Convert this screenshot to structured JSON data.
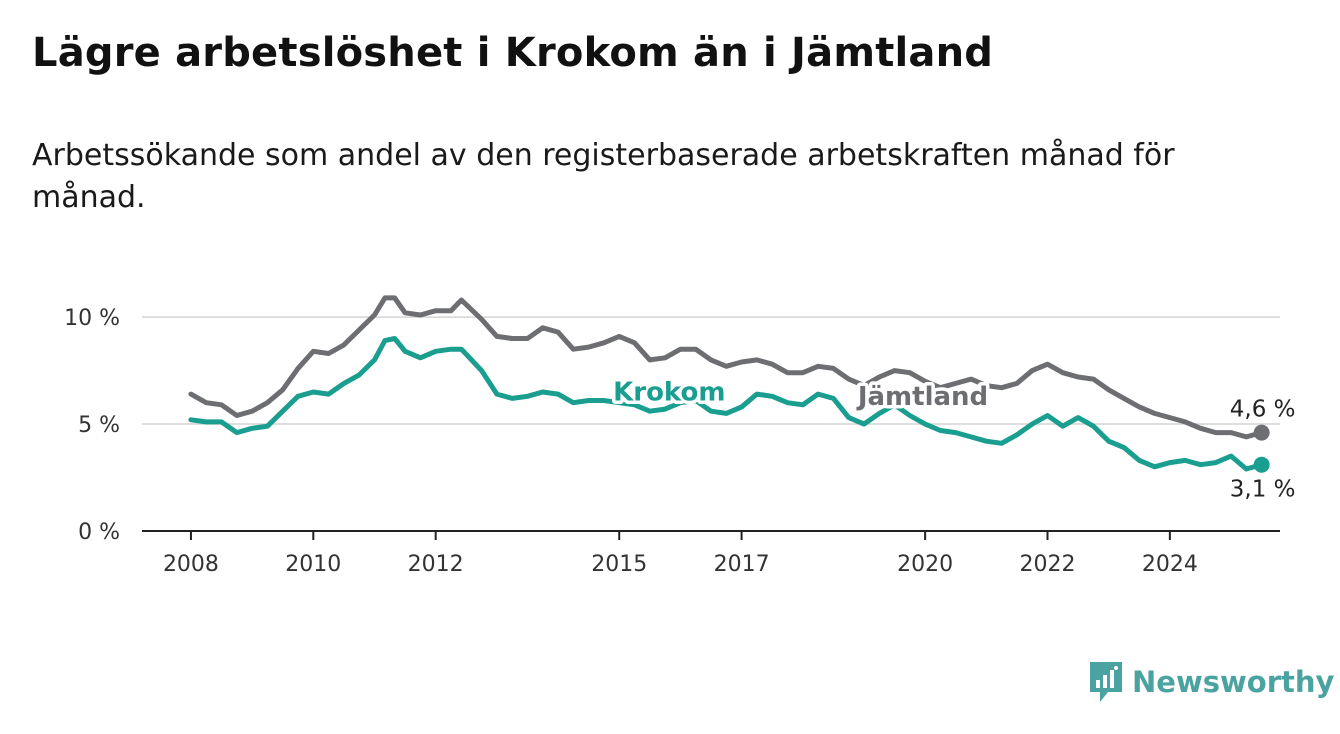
{
  "title": "Lägre arbetslöshet i Krokom än i Jämtland",
  "subtitle": "Arbetssökande som andel av den registerbaserade arbetskraften månad för månad.",
  "brand": {
    "name": "Newsworthy",
    "icon": "newsworthy-logo-icon",
    "color": "#4aa3a0"
  },
  "chart_data": {
    "type": "line",
    "x_unit": "year",
    "xlim": [
      2007.2,
      2025.8
    ],
    "ylim": [
      0,
      10.8
    ],
    "grid": true,
    "y_ticks": [
      {
        "value": 0,
        "label": "0 %"
      },
      {
        "value": 5,
        "label": "5 %"
      },
      {
        "value": 10,
        "label": "10 %"
      }
    ],
    "x_ticks": [
      {
        "value": 2008,
        "label": "2008"
      },
      {
        "value": 2010,
        "label": "2010"
      },
      {
        "value": 2012,
        "label": "2012"
      },
      {
        "value": 2015,
        "label": "2015"
      },
      {
        "value": 2017,
        "label": "2017"
      },
      {
        "value": 2020,
        "label": "2020"
      },
      {
        "value": 2022,
        "label": "2022"
      },
      {
        "value": 2024,
        "label": "2024"
      }
    ],
    "series": [
      {
        "name": "Jämtland",
        "color": "#6d6e72",
        "end_label": "4,6 %",
        "label_at": [
          2018.9,
          5.9
        ],
        "points": [
          [
            2008.0,
            6.4
          ],
          [
            2008.25,
            6.0
          ],
          [
            2008.5,
            5.9
          ],
          [
            2008.75,
            5.4
          ],
          [
            2009.0,
            5.6
          ],
          [
            2009.25,
            6.0
          ],
          [
            2009.5,
            6.6
          ],
          [
            2009.75,
            7.6
          ],
          [
            2010.0,
            8.4
          ],
          [
            2010.25,
            8.3
          ],
          [
            2010.5,
            8.7
          ],
          [
            2010.75,
            9.4
          ],
          [
            2011.0,
            10.1
          ],
          [
            2011.17,
            10.9
          ],
          [
            2011.33,
            10.9
          ],
          [
            2011.5,
            10.2
          ],
          [
            2011.75,
            10.1
          ],
          [
            2012.0,
            10.3
          ],
          [
            2012.25,
            10.3
          ],
          [
            2012.42,
            10.8
          ],
          [
            2012.75,
            9.9
          ],
          [
            2013.0,
            9.1
          ],
          [
            2013.25,
            9.0
          ],
          [
            2013.5,
            9.0
          ],
          [
            2013.75,
            9.5
          ],
          [
            2014.0,
            9.3
          ],
          [
            2014.25,
            8.5
          ],
          [
            2014.5,
            8.6
          ],
          [
            2014.75,
            8.8
          ],
          [
            2015.0,
            9.1
          ],
          [
            2015.25,
            8.8
          ],
          [
            2015.5,
            8.0
          ],
          [
            2015.75,
            8.1
          ],
          [
            2016.0,
            8.5
          ],
          [
            2016.25,
            8.5
          ],
          [
            2016.5,
            8.0
          ],
          [
            2016.75,
            7.7
          ],
          [
            2017.0,
            7.9
          ],
          [
            2017.25,
            8.0
          ],
          [
            2017.5,
            7.8
          ],
          [
            2017.75,
            7.4
          ],
          [
            2018.0,
            7.4
          ],
          [
            2018.25,
            7.7
          ],
          [
            2018.5,
            7.6
          ],
          [
            2018.75,
            7.1
          ],
          [
            2019.0,
            6.8
          ],
          [
            2019.25,
            7.2
          ],
          [
            2019.5,
            7.5
          ],
          [
            2019.75,
            7.4
          ],
          [
            2020.0,
            7.0
          ],
          [
            2020.25,
            6.7
          ],
          [
            2020.5,
            6.9
          ],
          [
            2020.75,
            7.1
          ],
          [
            2021.0,
            6.8
          ],
          [
            2021.25,
            6.7
          ],
          [
            2021.5,
            6.9
          ],
          [
            2021.75,
            7.5
          ],
          [
            2022.0,
            7.8
          ],
          [
            2022.25,
            7.4
          ],
          [
            2022.5,
            7.2
          ],
          [
            2022.75,
            7.1
          ],
          [
            2023.0,
            6.6
          ],
          [
            2023.25,
            6.2
          ],
          [
            2023.5,
            5.8
          ],
          [
            2023.75,
            5.5
          ],
          [
            2024.0,
            5.3
          ],
          [
            2024.25,
            5.1
          ],
          [
            2024.5,
            4.8
          ],
          [
            2024.75,
            4.6
          ],
          [
            2025.0,
            4.6
          ],
          [
            2025.25,
            4.4
          ],
          [
            2025.5,
            4.6
          ]
        ]
      },
      {
        "name": "Krokom",
        "color": "#1a9e8f",
        "end_label": "3,1 %",
        "label_at": [
          2014.9,
          6.1
        ],
        "points": [
          [
            2008.0,
            5.2
          ],
          [
            2008.25,
            5.1
          ],
          [
            2008.5,
            5.1
          ],
          [
            2008.75,
            4.6
          ],
          [
            2009.0,
            4.8
          ],
          [
            2009.25,
            4.9
          ],
          [
            2009.5,
            5.6
          ],
          [
            2009.75,
            6.3
          ],
          [
            2010.0,
            6.5
          ],
          [
            2010.25,
            6.4
          ],
          [
            2010.5,
            6.9
          ],
          [
            2010.75,
            7.3
          ],
          [
            2011.0,
            8.0
          ],
          [
            2011.17,
            8.9
          ],
          [
            2011.33,
            9.0
          ],
          [
            2011.5,
            8.4
          ],
          [
            2011.75,
            8.1
          ],
          [
            2012.0,
            8.4
          ],
          [
            2012.25,
            8.5
          ],
          [
            2012.42,
            8.5
          ],
          [
            2012.75,
            7.5
          ],
          [
            2013.0,
            6.4
          ],
          [
            2013.25,
            6.2
          ],
          [
            2013.5,
            6.3
          ],
          [
            2013.75,
            6.5
          ],
          [
            2014.0,
            6.4
          ],
          [
            2014.25,
            6.0
          ],
          [
            2014.5,
            6.1
          ],
          [
            2014.75,
            6.1
          ],
          [
            2015.0,
            6.0
          ],
          [
            2015.25,
            5.9
          ],
          [
            2015.5,
            5.6
          ],
          [
            2015.75,
            5.7
          ],
          [
            2016.0,
            6.0
          ],
          [
            2016.25,
            6.1
          ],
          [
            2016.5,
            5.6
          ],
          [
            2016.75,
            5.5
          ],
          [
            2017.0,
            5.8
          ],
          [
            2017.25,
            6.4
          ],
          [
            2017.5,
            6.3
          ],
          [
            2017.75,
            6.0
          ],
          [
            2018.0,
            5.9
          ],
          [
            2018.25,
            6.4
          ],
          [
            2018.5,
            6.2
          ],
          [
            2018.75,
            5.3
          ],
          [
            2019.0,
            5.0
          ],
          [
            2019.25,
            5.5
          ],
          [
            2019.5,
            5.9
          ],
          [
            2019.75,
            5.4
          ],
          [
            2020.0,
            5.0
          ],
          [
            2020.25,
            4.7
          ],
          [
            2020.5,
            4.6
          ],
          [
            2020.75,
            4.4
          ],
          [
            2021.0,
            4.2
          ],
          [
            2021.25,
            4.1
          ],
          [
            2021.5,
            4.5
          ],
          [
            2021.75,
            5.0
          ],
          [
            2022.0,
            5.4
          ],
          [
            2022.25,
            4.9
          ],
          [
            2022.5,
            5.3
          ],
          [
            2022.75,
            4.9
          ],
          [
            2023.0,
            4.2
          ],
          [
            2023.25,
            3.9
          ],
          [
            2023.5,
            3.3
          ],
          [
            2023.75,
            3.0
          ],
          [
            2024.0,
            3.2
          ],
          [
            2024.25,
            3.3
          ],
          [
            2024.5,
            3.1
          ],
          [
            2024.75,
            3.2
          ],
          [
            2025.0,
            3.5
          ],
          [
            2025.25,
            2.9
          ],
          [
            2025.5,
            3.1
          ]
        ]
      }
    ]
  }
}
